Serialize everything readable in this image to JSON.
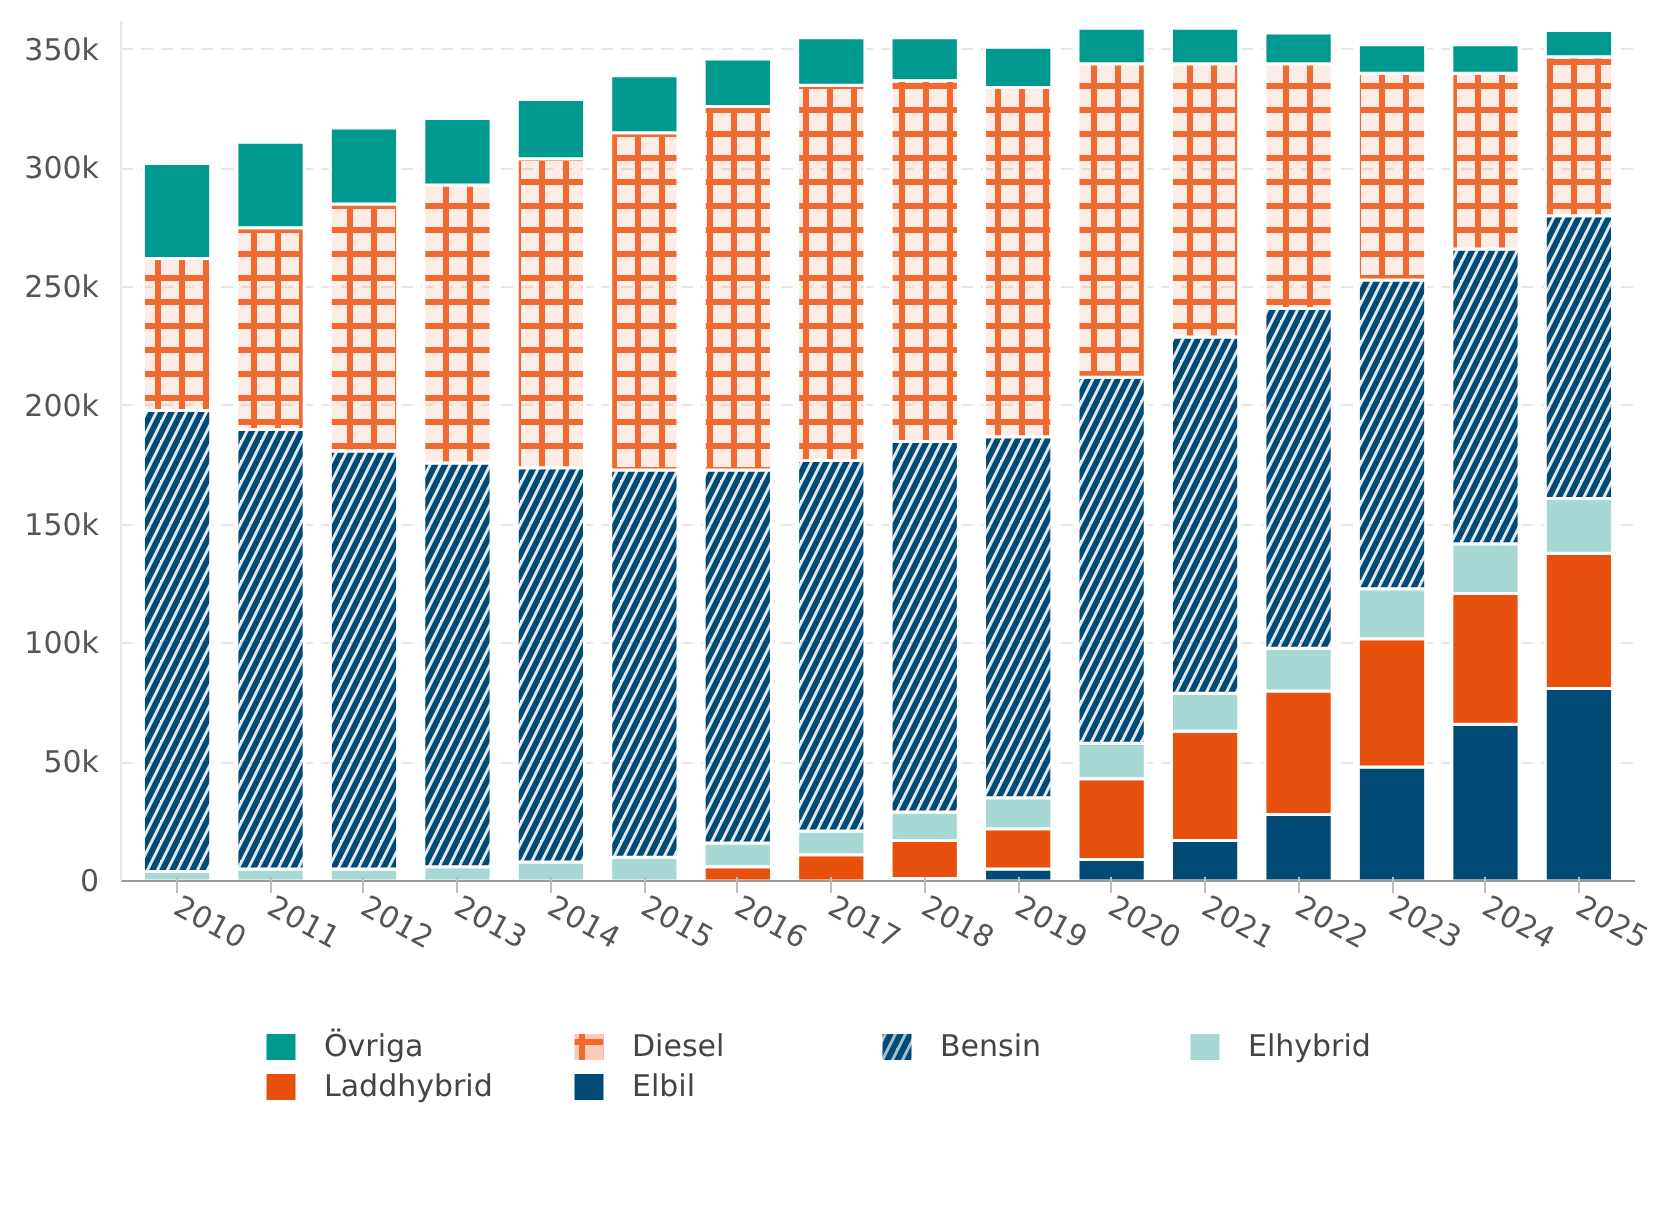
{
  "chart_data": {
    "type": "bar",
    "stacked": true,
    "categories": [
      "2010",
      "2011",
      "2012",
      "2013",
      "2014",
      "2015",
      "2016",
      "2017",
      "2018",
      "2019",
      "2020",
      "2021",
      "2022",
      "2023",
      "2024",
      "2025"
    ],
    "series": [
      {
        "name": "Elbil",
        "color": "#004a75",
        "values": [
          0,
          0,
          0,
          0,
          0,
          0,
          0,
          0,
          1000,
          5000,
          9000,
          17000,
          28000,
          48000,
          66000,
          81000
        ]
      },
      {
        "name": "Laddhybrid",
        "color": "#e8500e",
        "values": [
          0,
          0,
          0,
          0,
          0,
          0,
          6000,
          11000,
          16000,
          17000,
          34000,
          46000,
          52000,
          54000,
          55000,
          57000
        ]
      },
      {
        "name": "Elhybrid",
        "color": "#a8d8d4",
        "values": [
          4000,
          5000,
          5000,
          6000,
          8000,
          10000,
          10000,
          10000,
          12000,
          13000,
          15000,
          16000,
          18000,
          21000,
          21000,
          23000
        ]
      },
      {
        "name": "Bensin",
        "color": "#004a75",
        "values": [
          194000,
          185000,
          176000,
          170000,
          166000,
          163000,
          157000,
          156000,
          156000,
          152000,
          154000,
          150000,
          143000,
          130000,
          124000,
          119000
        ]
      },
      {
        "name": "Diesel",
        "color": "#f06a30",
        "values": [
          64000,
          85000,
          104000,
          117000,
          130000,
          142000,
          153000,
          158000,
          152000,
          147000,
          132000,
          115000,
          103000,
          87000,
          74000,
          67000
        ]
      },
      {
        "name": "Övriga",
        "color": "#00998f",
        "values": [
          40000,
          36000,
          32000,
          28000,
          25000,
          24000,
          20000,
          20000,
          18000,
          17000,
          15000,
          15000,
          13000,
          12000,
          12000,
          11000
        ]
      }
    ],
    "ylim": [
      0,
      362000
    ],
    "yticks": [
      {
        "value": 0,
        "label": "0"
      },
      {
        "value": 50000,
        "label": "50k"
      },
      {
        "value": 100000,
        "label": "100k"
      },
      {
        "value": 150000,
        "label": "150k"
      },
      {
        "value": 200000,
        "label": "200k"
      },
      {
        "value": 250000,
        "label": "250k"
      },
      {
        "value": 300000,
        "label": "300k"
      },
      {
        "value": 350000,
        "label": "350k"
      }
    ],
    "grid": "y",
    "legend": "bottom"
  }
}
